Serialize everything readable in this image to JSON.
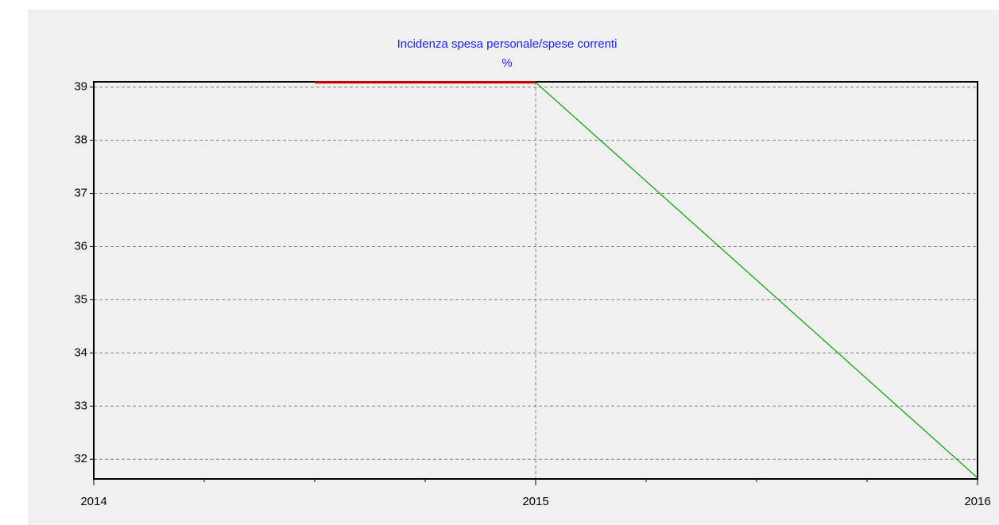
{
  "chart_data": {
    "type": "line",
    "title": "Incidenza spesa personale/spese correnti",
    "subtitle": "%",
    "series": [
      {
        "color": "#cc0000",
        "x": [
          2014.5,
          2015
        ],
        "values": [
          39.09,
          39.09
        ]
      },
      {
        "color": "#00a000",
        "x": [
          2015,
          2016
        ],
        "values": [
          39.09,
          31.65
        ]
      }
    ],
    "xlim": [
      2014,
      2016
    ],
    "xticks": [
      2014,
      2015,
      2016
    ],
    "ylim": [
      31.63,
      39.1
    ],
    "yticks": [
      32,
      33,
      34,
      35,
      36,
      37,
      38,
      39
    ],
    "grid": true
  }
}
